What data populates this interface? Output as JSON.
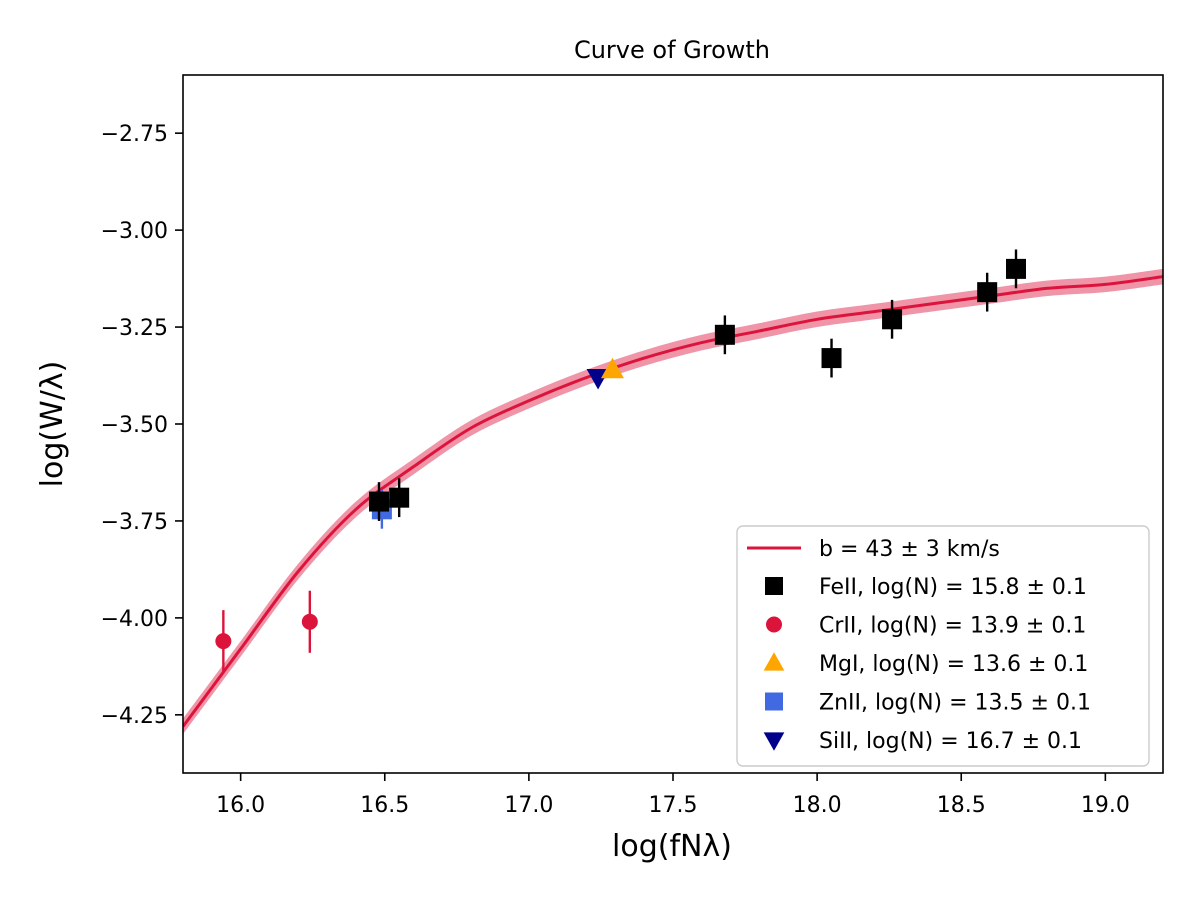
{
  "chart_data": {
    "type": "scatter",
    "title": "Curve of Growth",
    "xlabel": "log(fNλ)",
    "ylabel": "log(W/λ)",
    "xlim": [
      15.8,
      19.2
    ],
    "ylim": [
      -4.4,
      -2.6
    ],
    "xticks": [
      16.0,
      16.5,
      17.0,
      17.5,
      18.0,
      18.5,
      19.0
    ],
    "xtick_labels": [
      "16.0",
      "16.5",
      "17.0",
      "17.5",
      "18.0",
      "18.5",
      "19.0"
    ],
    "yticks": [
      -2.75,
      -3.0,
      -3.25,
      -3.5,
      -3.75,
      -4.0,
      -4.25
    ],
    "ytick_labels": [
      "−2.75",
      "−3.00",
      "−3.25",
      "−3.50",
      "−3.75",
      "−4.00",
      "−4.25"
    ],
    "grid": false,
    "legend_position": "bottom-right",
    "fit": {
      "label": "b = 43 ± 3 km/s",
      "color": "#dc143c",
      "x": [
        15.8,
        16.0,
        16.2,
        16.4,
        16.6,
        16.8,
        17.0,
        17.2,
        17.4,
        17.6,
        17.8,
        18.0,
        18.2,
        18.4,
        18.6,
        18.8,
        19.0,
        19.2
      ],
      "y": [
        -4.28,
        -4.08,
        -3.88,
        -3.72,
        -3.61,
        -3.51,
        -3.44,
        -3.38,
        -3.33,
        -3.29,
        -3.26,
        -3.23,
        -3.21,
        -3.19,
        -3.17,
        -3.15,
        -3.14,
        -3.12
      ],
      "band_halfwidth": 0.02
    },
    "series": [
      {
        "name": "FeII, log(N) = 15.8 ± 0.1",
        "marker": "square",
        "color": "#000000",
        "points": [
          {
            "x": 16.48,
            "y": -3.7,
            "err": 0.05
          },
          {
            "x": 16.55,
            "y": -3.69,
            "err": 0.05
          },
          {
            "x": 17.68,
            "y": -3.27,
            "err": 0.05
          },
          {
            "x": 18.05,
            "y": -3.33,
            "err": 0.05
          },
          {
            "x": 18.26,
            "y": -3.23,
            "err": 0.05
          },
          {
            "x": 18.59,
            "y": -3.16,
            "err": 0.05
          },
          {
            "x": 18.69,
            "y": -3.1,
            "err": 0.05
          }
        ]
      },
      {
        "name": "CrII, log(N) = 13.9 ± 0.1",
        "marker": "circle",
        "color": "#dc143c",
        "points": [
          {
            "x": 15.94,
            "y": -4.06,
            "err": 0.08
          },
          {
            "x": 16.24,
            "y": -4.01,
            "err": 0.08
          }
        ]
      },
      {
        "name": "MgI, log(N) = 13.6 ± 0.1",
        "marker": "triangle-up",
        "color": "#ffa500",
        "points": [
          {
            "x": 17.29,
            "y": -3.36,
            "err": 0.0
          }
        ]
      },
      {
        "name": "ZnII, log(N) = 13.5 ± 0.1",
        "marker": "square",
        "color": "#4169e1",
        "points": [
          {
            "x": 16.49,
            "y": -3.72,
            "err": 0.05
          }
        ]
      },
      {
        "name": "SiII, log(N) = 16.7 ± 0.1",
        "marker": "triangle-down",
        "color": "#00008b",
        "points": [
          {
            "x": 17.24,
            "y": -3.38,
            "err": 0.0
          }
        ]
      }
    ]
  }
}
